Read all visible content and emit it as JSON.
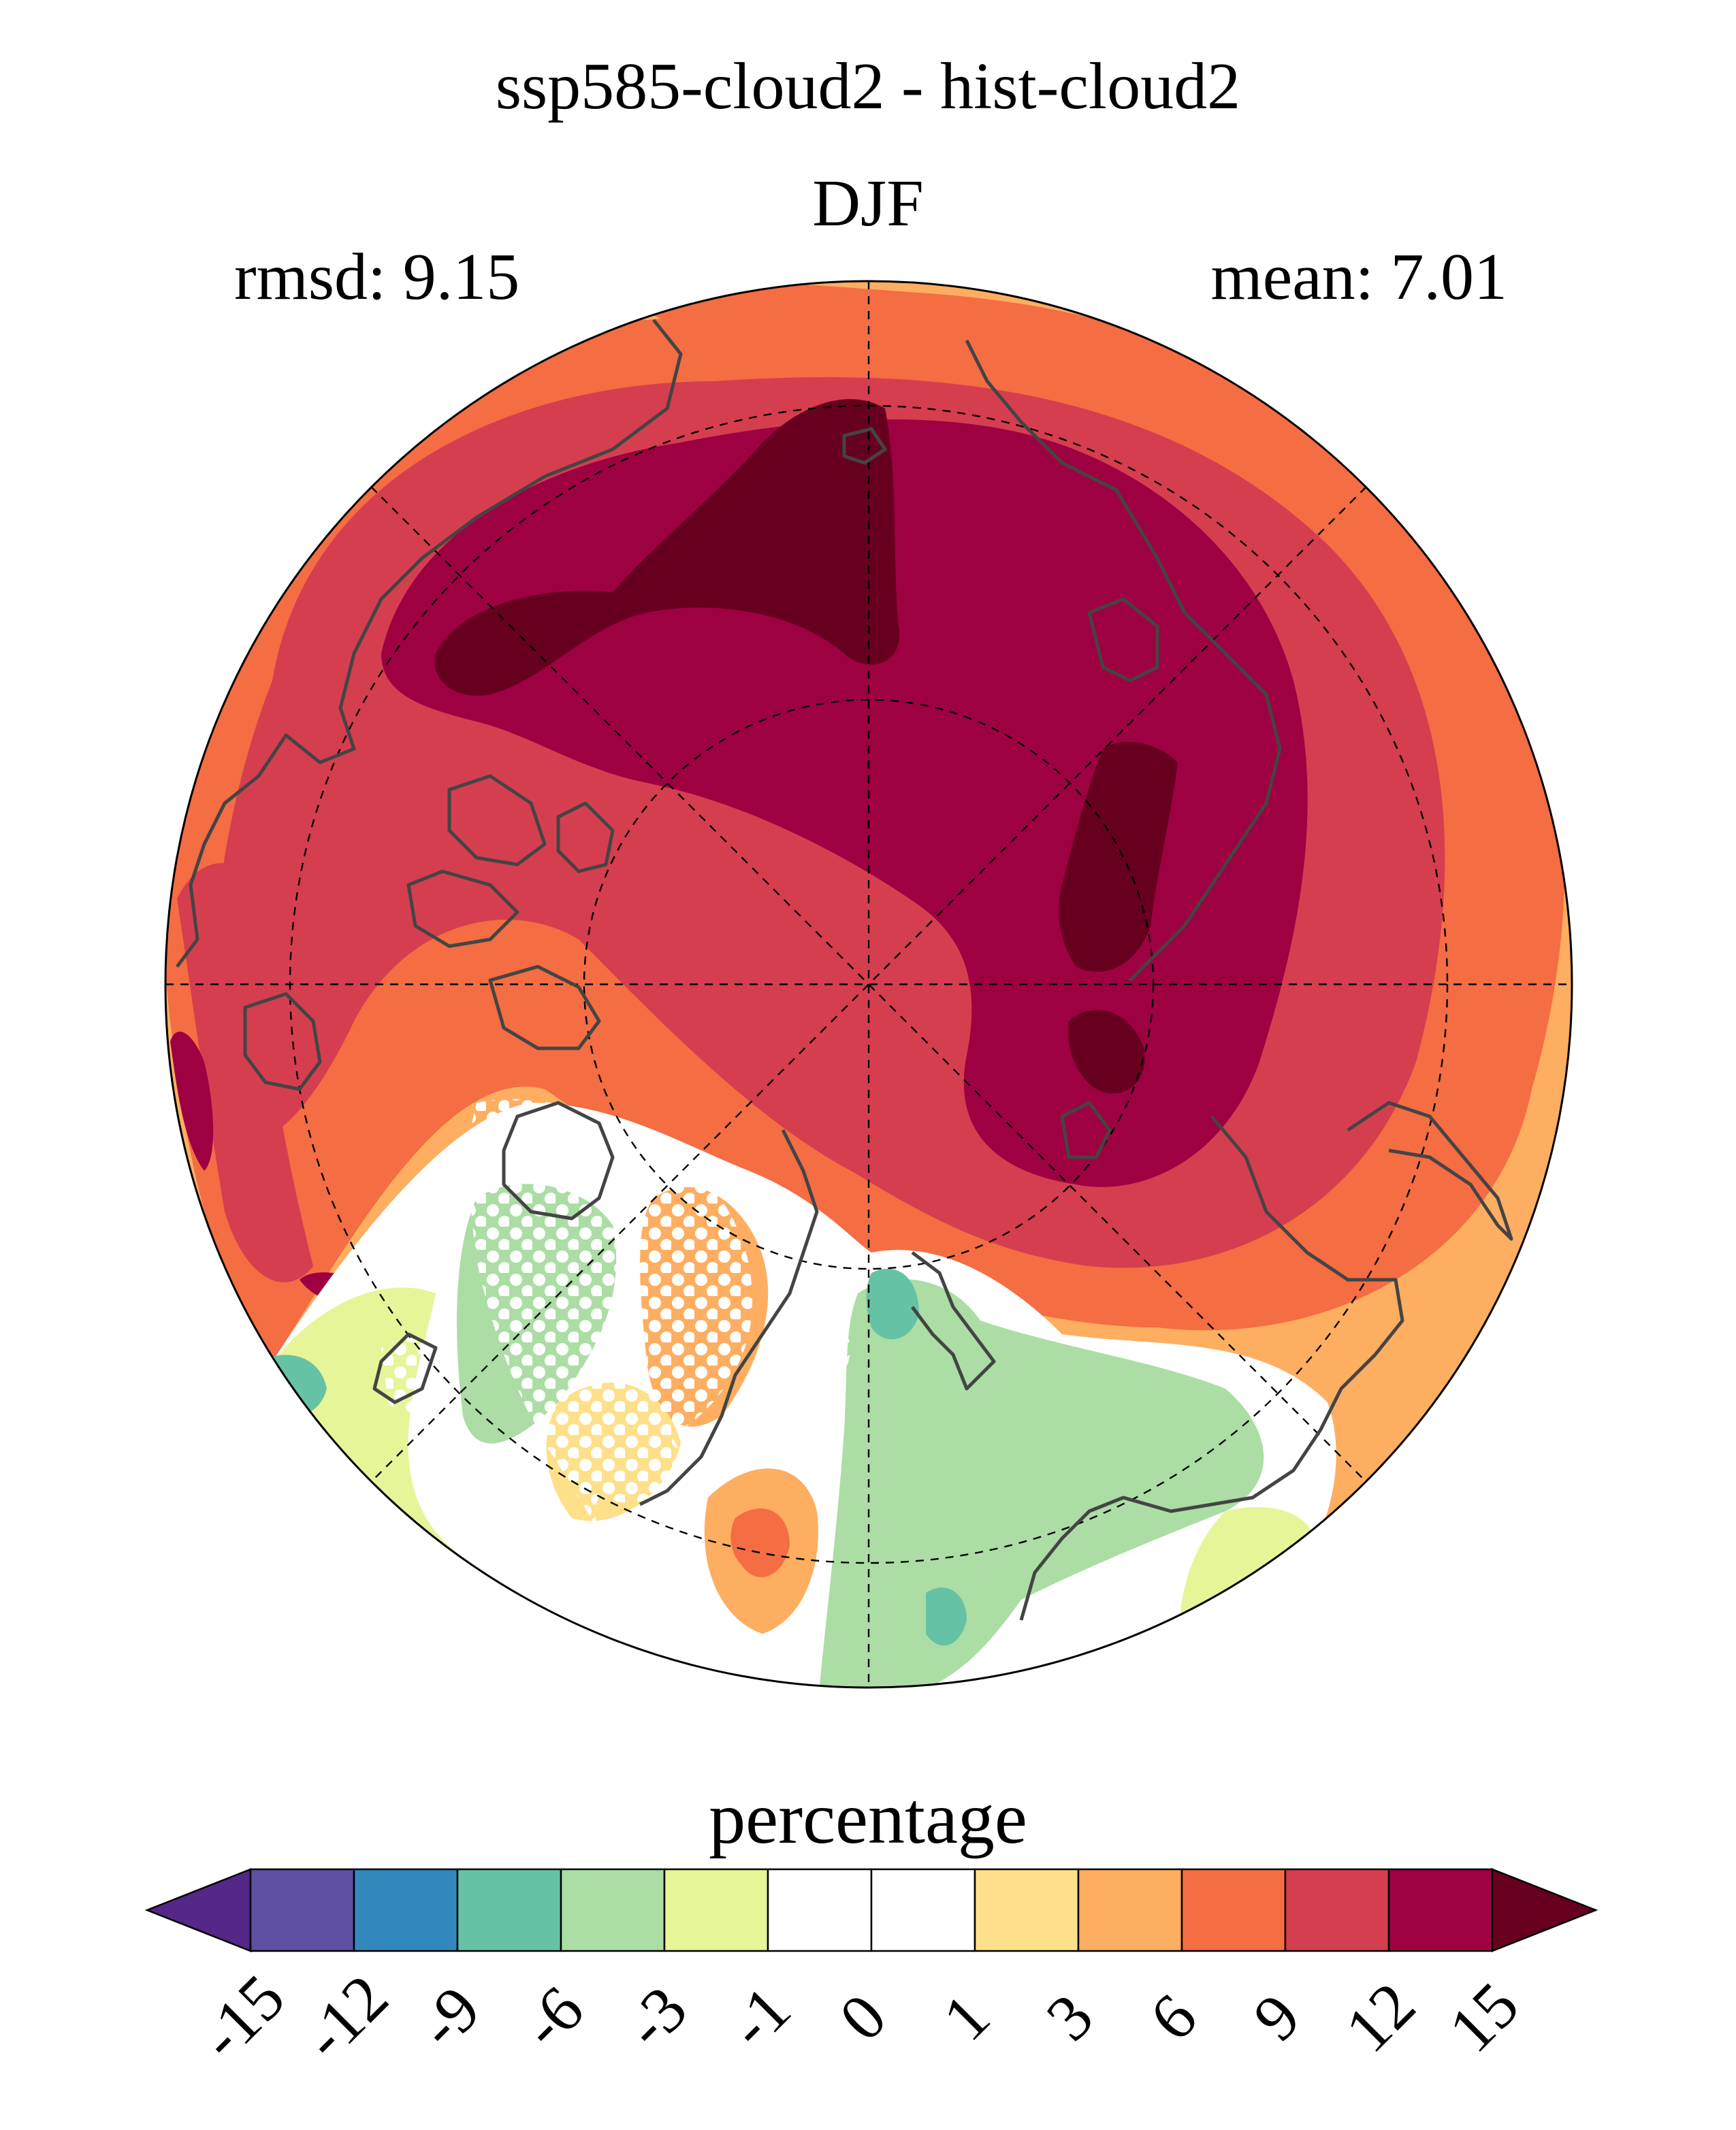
{
  "figure": {
    "title": "ssp585-cloud2 - hist-cloud2",
    "season": "DJF",
    "rmsd_label": "rmsd: 9.15",
    "mean_label": "mean: 7.01",
    "projection": "north-polar-stereographic",
    "graticule": "dashed",
    "stippling": "white dots over regions near zero change"
  },
  "colorbar": {
    "label": "percentage",
    "ticks": [
      "-15",
      "-12",
      "-9",
      "-6",
      "-3",
      "-1",
      "0",
      "1",
      "3",
      "6",
      "9",
      "12",
      "15"
    ],
    "colors": [
      "#5e4fa2",
      "#3288bd",
      "#66c2a5",
      "#abdda4",
      "#e6f598",
      "#ffffff",
      "#ffffff",
      "#fee08b",
      "#fdae61",
      "#f46d43",
      "#d53e4f",
      "#9e0142"
    ],
    "under_color": "#542788",
    "over_color": "#67001f",
    "extend": "both"
  }
}
